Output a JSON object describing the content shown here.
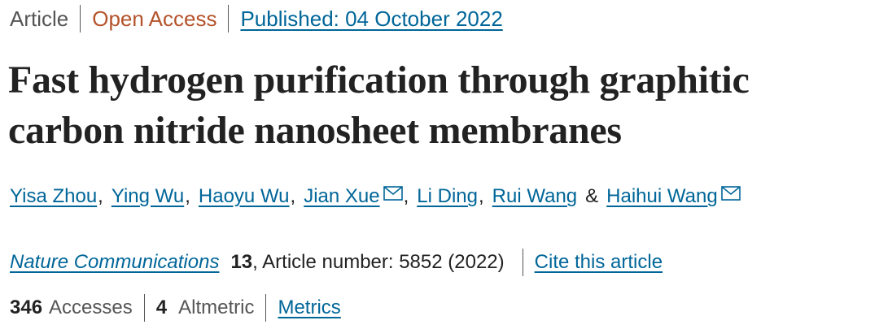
{
  "header": {
    "type": "Article",
    "access": "Open Access",
    "published": "Published: 04 October 2022"
  },
  "title": "Fast hydrogen purification through graphitic carbon nitride nanosheet membranes",
  "authors": [
    {
      "name": "Yisa Zhou",
      "email": false
    },
    {
      "name": "Ying Wu",
      "email": false
    },
    {
      "name": "Haoyu Wu",
      "email": false
    },
    {
      "name": "Jian Xue",
      "email": true
    },
    {
      "name": "Li Ding",
      "email": false
    },
    {
      "name": "Rui Wang",
      "email": false
    },
    {
      "name": "Haihui Wang",
      "email": true
    }
  ],
  "author_separators": [
    ",",
    ",",
    ",",
    ",",
    ",",
    "&"
  ],
  "citation": {
    "journal": "Nature Communications",
    "volume": "13",
    "article_number": ", Article number: 5852 (2022)",
    "cite_link": "Cite this article"
  },
  "metrics": {
    "accesses": 346,
    "accesses_label": "Accesses",
    "altmetric": 4,
    "altmetric_label": "Altmetric",
    "metrics_link": "Metrics"
  }
}
